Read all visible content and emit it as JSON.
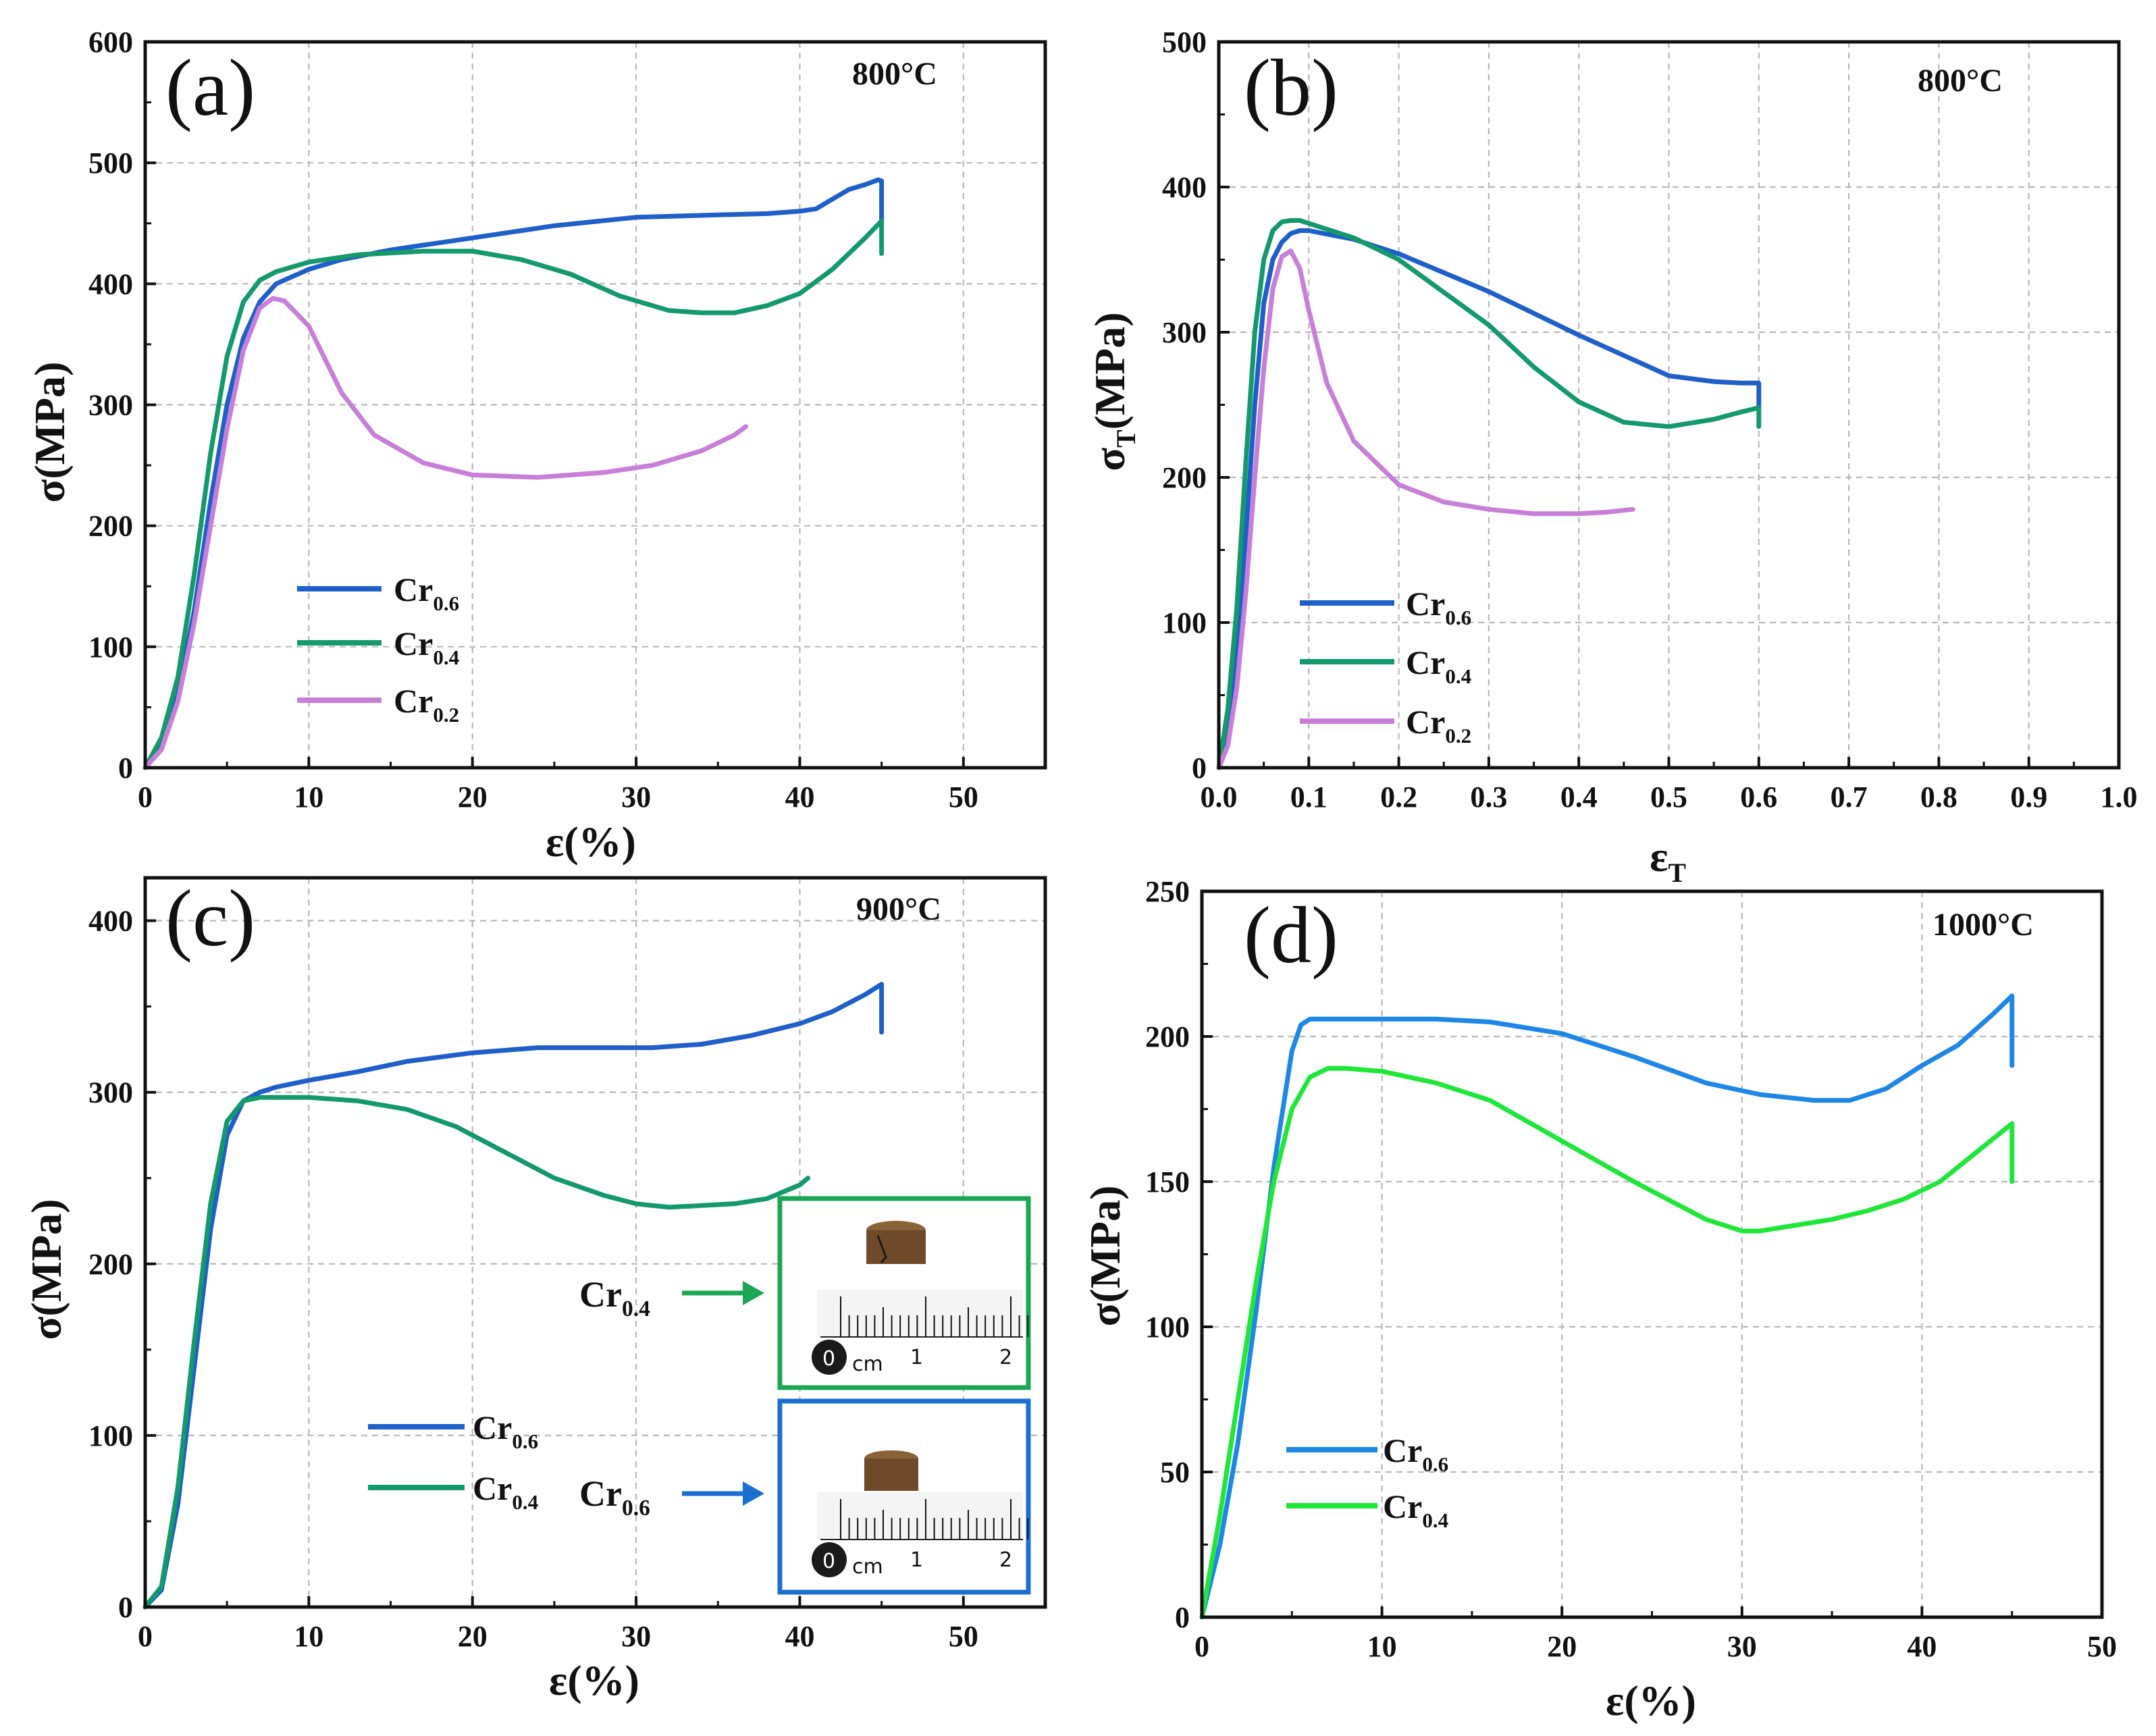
{
  "colors": {
    "cr06": "#1f5fc9",
    "cr04": "#14996b",
    "cr02": "#c77fd8",
    "cr06_d": "#1e87e6",
    "cr04_d": "#21e63a",
    "inset_green": "#1ba654",
    "inset_blue": "#1a6fd1",
    "specimen": "#6e4a2a"
  },
  "chart_data": [
    {
      "id": "a",
      "type": "line",
      "panel_label": "(a)",
      "temperature": "800°C",
      "xlabel": "ε(%)",
      "ylabel": "σ(MPa)",
      "xlim": [
        0,
        55
      ],
      "ylim": [
        0,
        600
      ],
      "xticks": [
        0,
        10,
        20,
        30,
        40,
        50
      ],
      "yticks": [
        0,
        100,
        200,
        300,
        400,
        500,
        600
      ],
      "grid": true,
      "legend": [
        "Cr0.6",
        "Cr0.4",
        "Cr0.2"
      ],
      "series": [
        {
          "name": "Cr0.6",
          "color_key": "cr06",
          "x": [
            0,
            1,
            2,
            3,
            4,
            5,
            6,
            7,
            8,
            10,
            12,
            15,
            20,
            25,
            30,
            35,
            38,
            40,
            41,
            42,
            43,
            44,
            44.8,
            45,
            45
          ],
          "y": [
            0,
            20,
            60,
            130,
            220,
            300,
            355,
            385,
            400,
            412,
            420,
            428,
            438,
            448,
            455,
            457,
            458,
            460,
            462,
            470,
            478,
            482,
            486,
            485,
            452
          ]
        },
        {
          "name": "Cr0.4",
          "color_key": "cr04",
          "x": [
            0,
            1,
            2,
            3,
            4,
            5,
            6,
            7,
            8,
            10,
            13,
            17,
            20,
            23,
            26,
            29,
            32,
            34,
            36,
            38,
            40,
            42,
            44,
            45,
            45
          ],
          "y": [
            0,
            25,
            75,
            160,
            260,
            340,
            385,
            403,
            410,
            418,
            424,
            427,
            427,
            420,
            408,
            390,
            378,
            376,
            376,
            382,
            392,
            412,
            438,
            452,
            425
          ]
        },
        {
          "name": "Cr0.2",
          "color_key": "cr02",
          "x": [
            0,
            1,
            2,
            3,
            4,
            5,
            6,
            7,
            7.8,
            8.5,
            10,
            12,
            14,
            17,
            20,
            24,
            28,
            31,
            34,
            36,
            36.7
          ],
          "y": [
            0,
            15,
            55,
            120,
            200,
            280,
            345,
            380,
            388,
            386,
            365,
            310,
            275,
            252,
            242,
            240,
            244,
            250,
            262,
            275,
            282
          ]
        }
      ]
    },
    {
      "id": "b",
      "type": "line",
      "panel_label": "(b)",
      "temperature": "800°C",
      "xlabel": "ε",
      "xlabel_sub": "T",
      "ylabel": "σ",
      "ylabel_sub": "T",
      "ylabel_suffix": "(MPa)",
      "xlim": [
        0.0,
        1.0
      ],
      "ylim": [
        0,
        500
      ],
      "xticks": [
        0.0,
        0.1,
        0.2,
        0.3,
        0.4,
        0.5,
        0.6,
        0.7,
        0.8,
        0.9,
        1.0
      ],
      "yticks": [
        0,
        100,
        200,
        300,
        400,
        500
      ],
      "grid": true,
      "legend": [
        "Cr0.6",
        "Cr0.4",
        "Cr0.2"
      ],
      "series": [
        {
          "name": "Cr0.6",
          "color_key": "cr06",
          "x": [
            0,
            0.01,
            0.02,
            0.03,
            0.04,
            0.05,
            0.06,
            0.07,
            0.08,
            0.09,
            0.1,
            0.15,
            0.2,
            0.3,
            0.4,
            0.5,
            0.55,
            0.58,
            0.6,
            0.6
          ],
          "y": [
            0,
            30,
            80,
            160,
            250,
            320,
            350,
            362,
            368,
            370,
            370,
            364,
            354,
            328,
            298,
            270,
            266,
            265,
            265,
            248
          ]
        },
        {
          "name": "Cr0.4",
          "color_key": "cr04",
          "x": [
            0,
            0.01,
            0.02,
            0.03,
            0.04,
            0.05,
            0.06,
            0.07,
            0.08,
            0.09,
            0.1,
            0.15,
            0.2,
            0.3,
            0.35,
            0.4,
            0.45,
            0.5,
            0.55,
            0.58,
            0.6,
            0.6
          ],
          "y": [
            0,
            40,
            110,
            210,
            300,
            350,
            370,
            376,
            377,
            377,
            375,
            365,
            350,
            305,
            276,
            252,
            238,
            235,
            240,
            245,
            248,
            235
          ]
        },
        {
          "name": "Cr0.2",
          "color_key": "cr02",
          "x": [
            0,
            0.01,
            0.02,
            0.03,
            0.04,
            0.05,
            0.06,
            0.07,
            0.08,
            0.09,
            0.1,
            0.12,
            0.15,
            0.2,
            0.25,
            0.3,
            0.35,
            0.4,
            0.43,
            0.46
          ],
          "y": [
            0,
            15,
            55,
            120,
            200,
            275,
            330,
            352,
            356,
            344,
            315,
            265,
            225,
            195,
            183,
            178,
            175,
            175,
            176,
            178
          ]
        }
      ]
    },
    {
      "id": "c",
      "type": "line",
      "panel_label": "(c)",
      "temperature": "900°C",
      "xlabel": "ε(%)",
      "ylabel": "σ(MPa)",
      "xlim": [
        0,
        55
      ],
      "ylim": [
        0,
        425
      ],
      "xticks": [
        0,
        10,
        20,
        30,
        40,
        50
      ],
      "yticks": [
        0,
        100,
        200,
        300,
        400
      ],
      "grid": true,
      "legend": [
        "Cr0.6",
        "Cr0.4"
      ],
      "series": [
        {
          "name": "Cr0.6",
          "color_key": "cr06",
          "x": [
            0,
            1,
            2,
            3,
            4,
            5,
            6,
            7,
            8,
            10,
            13,
            16,
            20,
            24,
            28,
            31,
            34,
            37,
            40,
            42,
            44,
            45,
            45
          ],
          "y": [
            0,
            10,
            60,
            140,
            220,
            275,
            295,
            300,
            303,
            307,
            312,
            318,
            323,
            326,
            326,
            326,
            328,
            333,
            340,
            347,
            357,
            363,
            335
          ]
        },
        {
          "name": "Cr0.4",
          "color_key": "cr04",
          "x": [
            0,
            1,
            2,
            3,
            4,
            5,
            6,
            7,
            8,
            10,
            13,
            16,
            19,
            22,
            25,
            28,
            30,
            32,
            34,
            36,
            38,
            39,
            40,
            40.5
          ],
          "y": [
            0,
            12,
            70,
            155,
            235,
            283,
            295,
            297,
            297,
            297,
            295,
            290,
            280,
            265,
            250,
            240,
            235,
            233,
            234,
            235,
            238,
            242,
            246,
            250
          ]
        }
      ],
      "insets": [
        {
          "label": "Cr0.4",
          "ruler_labels": [
            "0",
            "cm",
            "1",
            "2"
          ]
        },
        {
          "label": "Cr0.6",
          "ruler_labels": [
            "0",
            "cm",
            "1",
            "2"
          ]
        }
      ]
    },
    {
      "id": "d",
      "type": "line",
      "panel_label": "(d)",
      "temperature": "1000°C",
      "xlabel": "ε(%)",
      "ylabel": "σ(MPa)",
      "xlim": [
        0,
        50
      ],
      "ylim": [
        0,
        250
      ],
      "xticks": [
        0,
        10,
        20,
        30,
        40,
        50
      ],
      "yticks": [
        0,
        50,
        100,
        150,
        200,
        250
      ],
      "grid": true,
      "legend": [
        "Cr0.6",
        "Cr0.4"
      ],
      "series": [
        {
          "name": "Cr0.6",
          "color_key": "cr06_d",
          "x": [
            0,
            1,
            2,
            3,
            4,
            5,
            5.5,
            6,
            8,
            10,
            13,
            16,
            20,
            24,
            28,
            31,
            34,
            36,
            38,
            40,
            42,
            44,
            45,
            45
          ],
          "y": [
            0,
            25,
            60,
            105,
            155,
            195,
            204,
            206,
            206,
            206,
            206,
            205,
            201,
            193,
            184,
            180,
            178,
            178,
            182,
            190,
            197,
            208,
            214,
            190
          ]
        },
        {
          "name": "Cr0.4",
          "color_key": "cr04_d",
          "x": [
            0,
            1,
            2,
            3,
            4,
            5,
            6,
            7,
            8,
            10,
            13,
            16,
            20,
            24,
            28,
            30,
            31,
            33,
            35,
            37,
            39,
            41,
            43,
            44,
            45,
            45
          ],
          "y": [
            0,
            35,
            75,
            115,
            150,
            175,
            186,
            189,
            189,
            188,
            184,
            178,
            164,
            150,
            137,
            133,
            133,
            135,
            137,
            140,
            144,
            150,
            160,
            165,
            170,
            150
          ]
        }
      ]
    }
  ],
  "legend_labels": {
    "base": "Cr",
    "sub_06": "0.6",
    "sub_04": "0.4",
    "sub_02": "0.2"
  }
}
